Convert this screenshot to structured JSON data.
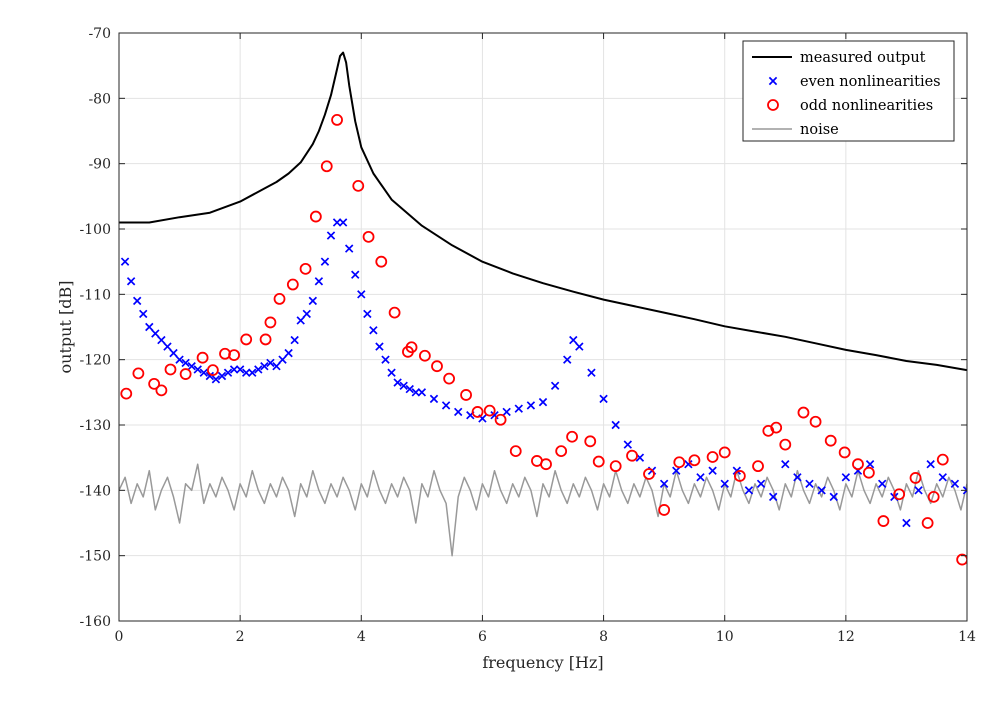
{
  "chart_data": {
    "type": "line",
    "title": "",
    "xlabel": "frequency [Hz]",
    "ylabel": "output [dB]",
    "xlim": [
      0,
      14
    ],
    "ylim": [
      -160,
      -70
    ],
    "xticks": [
      0,
      2,
      4,
      6,
      8,
      10,
      12,
      14
    ],
    "yticks": [
      -160,
      -150,
      -140,
      -130,
      -120,
      -110,
      -100,
      -90,
      -80,
      -70
    ],
    "grid": true,
    "legend_position": "top-right",
    "colors": {
      "measured": "#000000",
      "even": "#0000ff",
      "odd": "#ff0000",
      "noise": "#999999"
    },
    "series": [
      {
        "name": "measured output",
        "style": "line",
        "x": [
          0,
          0.5,
          1,
          1.5,
          2,
          2.4,
          2.6,
          2.8,
          3,
          3.2,
          3.3,
          3.4,
          3.5,
          3.6,
          3.65,
          3.7,
          3.75,
          3.8,
          3.9,
          4,
          4.2,
          4.5,
          5,
          5.5,
          6,
          6.5,
          7,
          7.5,
          8,
          8.5,
          9,
          9.5,
          10,
          10.5,
          11,
          11.5,
          12,
          12.5,
          13,
          13.5,
          14
        ],
        "values": [
          -99,
          -99,
          -98.2,
          -97.5,
          -95.8,
          -93.8,
          -92.8,
          -91.5,
          -89.8,
          -87,
          -85,
          -82.5,
          -79.5,
          -75.5,
          -73.5,
          -73,
          -74.5,
          -78,
          -83.5,
          -87.5,
          -91.5,
          -95.5,
          -99.5,
          -102.5,
          -105,
          -106.8,
          -108.3,
          -109.6,
          -110.8,
          -111.8,
          -112.8,
          -113.8,
          -114.9,
          -115.7,
          -116.5,
          -117.5,
          -118.5,
          -119.3,
          -120.2,
          -120.8,
          -121.6
        ]
      },
      {
        "name": "even nonlinearities",
        "style": "x-marker",
        "x": [
          0.1,
          0.2,
          0.3,
          0.4,
          0.5,
          0.6,
          0.7,
          0.8,
          0.9,
          1.0,
          1.1,
          1.2,
          1.3,
          1.4,
          1.5,
          1.6,
          1.7,
          1.8,
          1.9,
          2.0,
          2.1,
          2.2,
          2.3,
          2.4,
          2.5,
          2.6,
          2.7,
          2.8,
          2.9,
          3.0,
          3.1,
          3.2,
          3.3,
          3.4,
          3.5,
          3.6,
          3.7,
          3.8,
          3.9,
          4.0,
          4.1,
          4.2,
          4.3,
          4.4,
          4.5,
          4.6,
          4.7,
          4.8,
          4.9,
          5.0,
          5.2,
          5.4,
          5.6,
          5.8,
          6.0,
          6.2,
          6.4,
          6.6,
          6.8,
          7.0,
          7.2,
          7.4,
          7.5,
          7.6,
          7.8,
          8.0,
          8.2,
          8.4,
          8.6,
          8.8,
          9.0,
          9.2,
          9.4,
          9.6,
          9.8,
          10.0,
          10.2,
          10.4,
          10.6,
          10.8,
          11.0,
          11.2,
          11.4,
          11.6,
          11.8,
          12.0,
          12.2,
          12.4,
          12.6,
          12.8,
          13.0,
          13.2,
          13.4,
          13.6,
          13.8,
          14.0
        ],
        "values": [
          -105,
          -108,
          -111,
          -113,
          -115,
          -116,
          -117,
          -118,
          -119,
          -120,
          -120.5,
          -121,
          -121.5,
          -122,
          -122.5,
          -123,
          -122.5,
          -122,
          -121.5,
          -121.5,
          -122,
          -122,
          -121.5,
          -121,
          -120.5,
          -121,
          -120,
          -119,
          -117,
          -114,
          -113,
          -111,
          -108,
          -105,
          -101,
          -99,
          -99,
          -103,
          -107,
          -110,
          -113,
          -115.5,
          -118,
          -120,
          -122,
          -123.5,
          -124,
          -124.5,
          -125,
          -125,
          -126,
          -127,
          -128,
          -128.5,
          -129,
          -128.5,
          -128,
          -127.5,
          -127,
          -126.5,
          -124,
          -120,
          -117,
          -118,
          -122,
          -126,
          -130,
          -133,
          -135,
          -137,
          -139,
          -137,
          -136,
          -138,
          -137,
          -139,
          -137,
          -140,
          -139,
          -141,
          -136,
          -138,
          -139,
          -140,
          -141,
          -138,
          -137,
          -136,
          -139,
          -141,
          -145,
          -140,
          -136,
          -138,
          -139,
          -140
        ]
      },
      {
        "name": "odd nonlinearities",
        "style": "o-marker",
        "x": [
          0.12,
          0.32,
          0.58,
          0.7,
          0.85,
          1.1,
          1.38,
          1.55,
          1.75,
          1.9,
          2.1,
          2.42,
          2.5,
          2.65,
          2.87,
          3.08,
          3.25,
          3.43,
          3.6,
          3.95,
          4.12,
          4.33,
          4.55,
          4.77,
          4.83,
          5.05,
          5.25,
          5.45,
          5.73,
          5.92,
          6.12,
          6.3,
          6.55,
          6.9,
          7.05,
          7.3,
          7.48,
          7.78,
          7.92,
          8.2,
          8.47,
          8.75,
          9.0,
          9.25,
          9.5,
          9.8,
          10.0,
          10.25,
          10.55,
          10.72,
          10.85,
          11.0,
          11.3,
          11.5,
          11.75,
          11.98,
          12.2,
          12.38,
          12.62,
          12.88,
          13.15,
          13.35,
          13.45,
          13.6,
          13.92
        ],
        "values": [
          -125.2,
          -122.1,
          -123.7,
          -124.7,
          -121.5,
          -122.2,
          -119.7,
          -121.6,
          -119.1,
          -119.3,
          -116.9,
          -116.9,
          -114.3,
          -110.7,
          -108.5,
          -106.1,
          -98.1,
          -90.4,
          -83.3,
          -93.4,
          -101.2,
          -105.0,
          -112.8,
          -118.8,
          -118.1,
          -119.4,
          -121.0,
          -122.9,
          -125.4,
          -128.0,
          -127.8,
          -129.2,
          -134.0,
          -135.5,
          -136.0,
          -134.0,
          -131.8,
          -132.5,
          -135.6,
          -136.3,
          -134.7,
          -137.5,
          -143.0,
          -135.7,
          -135.4,
          -134.9,
          -134.2,
          -137.8,
          -136.3,
          -130.9,
          -130.4,
          -133.0,
          -128.1,
          -129.5,
          -132.4,
          -134.2,
          -136.0,
          -137.3,
          -144.7,
          -140.6,
          -138.1,
          -145.0,
          -141.0,
          -135.3,
          -150.6
        ]
      },
      {
        "name": "noise",
        "style": "line",
        "x": [
          0,
          0.1,
          0.2,
          0.3,
          0.4,
          0.5,
          0.6,
          0.7,
          0.8,
          0.9,
          1.0,
          1.1,
          1.2,
          1.3,
          1.4,
          1.5,
          1.6,
          1.7,
          1.8,
          1.9,
          2.0,
          2.1,
          2.2,
          2.3,
          2.4,
          2.5,
          2.6,
          2.7,
          2.8,
          2.9,
          3.0,
          3.1,
          3.2,
          3.3,
          3.4,
          3.5,
          3.6,
          3.7,
          3.8,
          3.9,
          4.0,
          4.1,
          4.2,
          4.3,
          4.4,
          4.5,
          4.6,
          4.7,
          4.8,
          4.9,
          5.0,
          5.1,
          5.2,
          5.3,
          5.4,
          5.5,
          5.6,
          5.7,
          5.8,
          5.9,
          6.0,
          6.1,
          6.2,
          6.3,
          6.4,
          6.5,
          6.6,
          6.7,
          6.8,
          6.9,
          7.0,
          7.1,
          7.2,
          7.3,
          7.4,
          7.5,
          7.6,
          7.7,
          7.8,
          7.9,
          8.0,
          8.1,
          8.2,
          8.3,
          8.4,
          8.5,
          8.6,
          8.7,
          8.8,
          8.9,
          9.0,
          9.1,
          9.2,
          9.3,
          9.4,
          9.5,
          9.6,
          9.7,
          9.8,
          9.9,
          10.0,
          10.1,
          10.2,
          10.3,
          10.4,
          10.5,
          10.6,
          10.7,
          10.8,
          10.9,
          11.0,
          11.1,
          11.2,
          11.3,
          11.4,
          11.5,
          11.6,
          11.7,
          11.8,
          11.9,
          12.0,
          12.1,
          12.2,
          12.3,
          12.4,
          12.5,
          12.6,
          12.7,
          12.8,
          12.9,
          13.0,
          13.1,
          13.2,
          13.3,
          13.4,
          13.5,
          13.6,
          13.7,
          13.8,
          13.9,
          14.0
        ],
        "values": [
          -140,
          -138,
          -142,
          -139,
          -141,
          -137,
          -143,
          -140,
          -138,
          -141,
          -145,
          -139,
          -140,
          -136,
          -142,
          -139,
          -141,
          -138,
          -140,
          -143,
          -139,
          -141,
          -137,
          -140,
          -142,
          -139,
          -141,
          -138,
          -140,
          -144,
          -139,
          -141,
          -137,
          -140,
          -142,
          -139,
          -141,
          -138,
          -140,
          -143,
          -139,
          -141,
          -137,
          -140,
          -142,
          -139,
          -141,
          -138,
          -140,
          -145,
          -139,
          -141,
          -137,
          -140,
          -142,
          -150,
          -141,
          -138,
          -140,
          -143,
          -139,
          -141,
          -137,
          -140,
          -142,
          -139,
          -141,
          -138,
          -140,
          -144,
          -139,
          -141,
          -137,
          -140,
          -142,
          -139,
          -141,
          -138,
          -140,
          -143,
          -139,
          -141,
          -137,
          -140,
          -142,
          -139,
          -141,
          -138,
          -140,
          -144,
          -139,
          -141,
          -137,
          -140,
          -142,
          -139,
          -141,
          -138,
          -140,
          -143,
          -139,
          -141,
          -137,
          -140,
          -142,
          -139,
          -141,
          -138,
          -140,
          -143,
          -139,
          -141,
          -137,
          -140,
          -142,
          -139,
          -141,
          -138,
          -140,
          -143,
          -139,
          -141,
          -137,
          -140,
          -142,
          -139,
          -141,
          -138,
          -140,
          -143,
          -139,
          -141,
          -137,
          -140,
          -142,
          -139,
          -141,
          -138,
          -140,
          -143,
          -139
        ]
      }
    ]
  }
}
